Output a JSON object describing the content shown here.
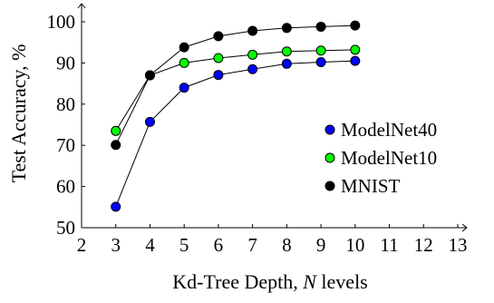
{
  "chart_data": {
    "type": "line",
    "xlabel": "Kd-Tree Depth, N levels",
    "xlabel_parts": {
      "before": "Kd-Tree Depth, ",
      "symbol": "N",
      "after": " levels"
    },
    "ylabel": "Test Accuracy, %",
    "xlim": [
      2,
      13
    ],
    "ylim": [
      50,
      100
    ],
    "xticks": [
      2,
      3,
      4,
      5,
      6,
      7,
      8,
      9,
      10,
      11,
      12,
      13
    ],
    "yticks": [
      50,
      60,
      70,
      80,
      90,
      100
    ],
    "grid": false,
    "legend_position": "center-right",
    "series": [
      {
        "name": "ModelNet40",
        "color": "#0000ff",
        "x": [
          3,
          4,
          5,
          6,
          7,
          8,
          9,
          10
        ],
        "y": [
          55.1,
          75.7,
          84.0,
          87.1,
          88.5,
          89.8,
          90.2,
          90.5
        ]
      },
      {
        "name": "ModelNet10",
        "color": "#00ff00",
        "x": [
          3,
          4,
          5,
          6,
          7,
          8,
          9,
          10
        ],
        "y": [
          73.5,
          87.0,
          90.0,
          91.2,
          92.0,
          92.8,
          93.0,
          93.2
        ]
      },
      {
        "name": "MNIST",
        "color": "#000000",
        "x": [
          3,
          4,
          5,
          6,
          7,
          8,
          9,
          10
        ],
        "y": [
          70.1,
          87.0,
          93.8,
          96.5,
          97.8,
          98.5,
          98.8,
          99.1
        ]
      }
    ]
  }
}
